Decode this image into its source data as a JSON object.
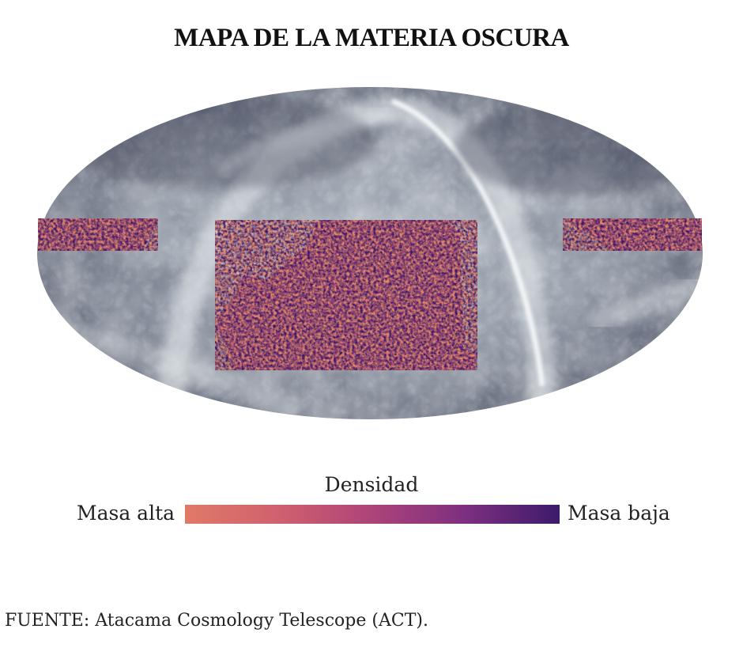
{
  "title": "MAPA DE LA MATERIA OSCURA",
  "map": {
    "projection": "mollweide",
    "background_style": "grey galactic dust all-sky map",
    "overlay_style": "purple-orange density noise",
    "colors": {
      "sky_dark": "#4e5466",
      "sky_mid": "#9aa2ad",
      "sky_light": "#eef1f3",
      "overlay_high": "#e07a67",
      "overlay_mid": "#ad4379",
      "overlay_low": "#3d1a6b"
    }
  },
  "legend": {
    "title": "Densidad",
    "left_label": "Masa alta",
    "right_label": "Masa baja"
  },
  "source": {
    "label": "FUENTE:",
    "text": "Atacama Cosmology Telescope (ACT)."
  }
}
